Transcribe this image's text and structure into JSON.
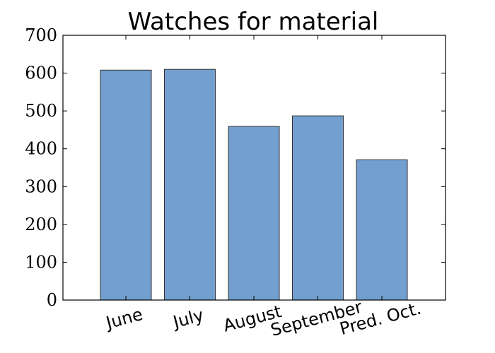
{
  "chart_data": {
    "type": "bar",
    "title": "Watches for material",
    "xlabel": "",
    "ylabel": "",
    "categories": [
      "June",
      "July",
      "August",
      "September",
      "Pred. Oct."
    ],
    "values": [
      608,
      610,
      459,
      487,
      371
    ],
    "ylim": [
      0,
      700
    ],
    "yticks": [
      0,
      100,
      200,
      300,
      400,
      500,
      600,
      700
    ],
    "ytick_labels": [
      "0",
      "100",
      "200",
      "300",
      "400",
      "500",
      "600",
      "700"
    ],
    "bar_color": "#729fcf",
    "bar_edge_color": "#333333",
    "grid": false,
    "legend": "none"
  }
}
